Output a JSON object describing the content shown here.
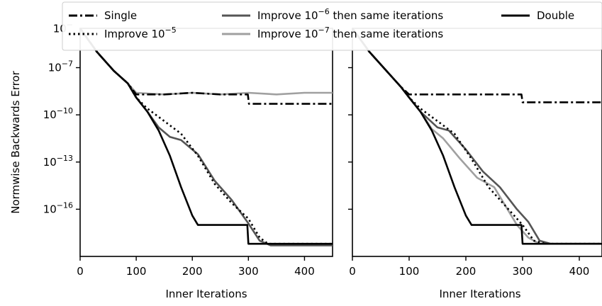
{
  "chart_data": [
    {
      "type": "line",
      "xlabel": "Inner Iterations",
      "ylabel": "Normwise Backwards Error",
      "xlim": [
        0,
        450
      ],
      "ylim_log10": [
        -19,
        -4.5
      ],
      "x_ticks": [
        0,
        100,
        200,
        300,
        400
      ],
      "y_ticks_log10": [
        -16,
        -13,
        -10,
        -7,
        -4
      ],
      "series": [
        {
          "name": "Single",
          "style": "dash-dot",
          "color": "#000000",
          "points": [
            [
              0,
              -4.2
            ],
            [
              30,
              -6.0
            ],
            [
              60,
              -7.2
            ],
            [
              85,
              -8.0
            ],
            [
              100,
              -8.7
            ],
            [
              150,
              -8.7
            ],
            [
              200,
              -8.6
            ],
            [
              250,
              -8.7
            ],
            [
              299,
              -8.7
            ],
            [
              301,
              -9.3
            ],
            [
              450,
              -9.3
            ]
          ]
        },
        {
          "name": "Improve 10^-5",
          "style": "dotted",
          "color": "#000000",
          "points": [
            [
              0,
              -4.2
            ],
            [
              30,
              -6.0
            ],
            [
              60,
              -7.2
            ],
            [
              85,
              -8.0
            ],
            [
              100,
              -8.9
            ],
            [
              120,
              -9.6
            ],
            [
              150,
              -10.4
            ],
            [
              180,
              -11.2
            ],
            [
              210,
              -12.6
            ],
            [
              240,
              -14.4
            ],
            [
              270,
              -15.6
            ],
            [
              300,
              -16.6
            ],
            [
              320,
              -17.8
            ],
            [
              335,
              -18.2
            ],
            [
              450,
              -18.2
            ]
          ]
        },
        {
          "name": "Improve 10^-6 then same iterations",
          "style": "solid",
          "color": "#555555",
          "points": [
            [
              0,
              -4.2
            ],
            [
              30,
              -6.0
            ],
            [
              60,
              -7.2
            ],
            [
              85,
              -8.0
            ],
            [
              100,
              -8.9
            ],
            [
              120,
              -9.8
            ],
            [
              140,
              -10.8
            ],
            [
              160,
              -11.4
            ],
            [
              180,
              -11.6
            ],
            [
              210,
              -12.5
            ],
            [
              240,
              -14.2
            ],
            [
              270,
              -15.4
            ],
            [
              300,
              -16.9
            ],
            [
              320,
              -18.0
            ],
            [
              340,
              -18.3
            ],
            [
              450,
              -18.3
            ]
          ]
        },
        {
          "name": "Improve 10^-7 then same iterations",
          "style": "solid",
          "color": "#a0a0a0",
          "points": [
            [
              0,
              -4.2
            ],
            [
              30,
              -6.0
            ],
            [
              60,
              -7.2
            ],
            [
              85,
              -8.0
            ],
            [
              100,
              -8.6
            ],
            [
              150,
              -8.7
            ],
            [
              200,
              -8.6
            ],
            [
              250,
              -8.7
            ],
            [
              300,
              -8.6
            ],
            [
              350,
              -8.7
            ],
            [
              400,
              -8.6
            ],
            [
              450,
              -8.6
            ]
          ]
        },
        {
          "name": "Double",
          "style": "solid",
          "color": "#000000",
          "points": [
            [
              0,
              -4.2
            ],
            [
              30,
              -6.0
            ],
            [
              60,
              -7.2
            ],
            [
              85,
              -8.0
            ],
            [
              100,
              -8.9
            ],
            [
              120,
              -9.8
            ],
            [
              140,
              -11.0
            ],
            [
              160,
              -12.6
            ],
            [
              180,
              -14.6
            ],
            [
              200,
              -16.4
            ],
            [
              210,
              -17.0
            ],
            [
              230,
              -17.0
            ],
            [
              298,
              -17.0
            ],
            [
              300,
              -18.2
            ],
            [
              450,
              -18.2
            ]
          ]
        }
      ]
    },
    {
      "type": "line",
      "xlabel": "Inner Iterations",
      "ylabel": "",
      "xlim": [
        0,
        440
      ],
      "ylim_log10": [
        -19,
        -4.5
      ],
      "x_ticks": [
        0,
        100,
        200,
        300,
        400
      ],
      "y_ticks_log10": [
        -16,
        -13,
        -10,
        -7,
        -4
      ],
      "series": [
        {
          "name": "Single",
          "style": "dash-dot",
          "color": "#000000",
          "points": [
            [
              0,
              -4.2
            ],
            [
              30,
              -6.0
            ],
            [
              60,
              -7.2
            ],
            [
              85,
              -8.2
            ],
            [
              100,
              -8.7
            ],
            [
              200,
              -8.7
            ],
            [
              298,
              -8.7
            ],
            [
              300,
              -9.2
            ],
            [
              440,
              -9.2
            ]
          ]
        },
        {
          "name": "Improve 10^-5",
          "style": "dotted",
          "color": "#000000",
          "points": [
            [
              0,
              -4.2
            ],
            [
              30,
              -6.0
            ],
            [
              60,
              -7.2
            ],
            [
              85,
              -8.2
            ],
            [
              100,
              -8.9
            ],
            [
              120,
              -9.6
            ],
            [
              150,
              -10.4
            ],
            [
              180,
              -11.2
            ],
            [
              210,
              -12.8
            ],
            [
              240,
              -14.6
            ],
            [
              270,
              -15.8
            ],
            [
              300,
              -17.0
            ],
            [
              320,
              -18.0
            ],
            [
              340,
              -18.2
            ],
            [
              440,
              -18.2
            ]
          ]
        },
        {
          "name": "Improve 10^-6 then same iterations",
          "style": "solid",
          "color": "#555555",
          "points": [
            [
              0,
              -4.2
            ],
            [
              30,
              -6.0
            ],
            [
              60,
              -7.2
            ],
            [
              85,
              -8.2
            ],
            [
              100,
              -8.9
            ],
            [
              120,
              -9.8
            ],
            [
              150,
              -10.8
            ],
            [
              170,
              -11.0
            ],
            [
              200,
              -12.2
            ],
            [
              230,
              -13.6
            ],
            [
              260,
              -14.6
            ],
            [
              290,
              -16.0
            ],
            [
              310,
              -16.8
            ],
            [
              330,
              -18.0
            ],
            [
              350,
              -18.2
            ],
            [
              440,
              -18.2
            ]
          ]
        },
        {
          "name": "Improve 10^-7 then same iterations",
          "style": "solid",
          "color": "#a0a0a0",
          "points": [
            [
              0,
              -4.2
            ],
            [
              30,
              -6.0
            ],
            [
              60,
              -7.2
            ],
            [
              85,
              -8.2
            ],
            [
              100,
              -8.9
            ],
            [
              120,
              -9.8
            ],
            [
              140,
              -10.9
            ],
            [
              160,
              -11.5
            ],
            [
              190,
              -12.8
            ],
            [
              220,
              -14.0
            ],
            [
              250,
              -14.6
            ],
            [
              270,
              -15.8
            ],
            [
              290,
              -17.0
            ],
            [
              310,
              -17.8
            ],
            [
              330,
              -18.2
            ],
            [
              440,
              -18.2
            ]
          ]
        },
        {
          "name": "Double",
          "style": "solid",
          "color": "#000000",
          "points": [
            [
              0,
              -4.2
            ],
            [
              30,
              -6.0
            ],
            [
              60,
              -7.2
            ],
            [
              85,
              -8.2
            ],
            [
              100,
              -8.9
            ],
            [
              120,
              -9.8
            ],
            [
              140,
              -11.0
            ],
            [
              160,
              -12.6
            ],
            [
              180,
              -14.6
            ],
            [
              200,
              -16.4
            ],
            [
              210,
              -17.0
            ],
            [
              230,
              -17.0
            ],
            [
              298,
              -17.0
            ],
            [
              300,
              -18.2
            ],
            [
              440,
              -18.2
            ]
          ]
        }
      ]
    }
  ],
  "legend": {
    "placement": "top",
    "entries": [
      {
        "label": "Single",
        "style": "dash-dot",
        "color": "#000000"
      },
      {
        "label_prefix": "Improve 10",
        "sup": "−5",
        "label_suffix": "",
        "style": "dotted",
        "color": "#000000"
      },
      {
        "label_prefix": "Improve 10",
        "sup": "−6",
        "label_suffix": " then same iterations",
        "style": "solid",
        "color": "#555555"
      },
      {
        "label_prefix": "Improve 10",
        "sup": "−7",
        "label_suffix": " then same iterations",
        "style": "solid",
        "color": "#a0a0a0"
      },
      {
        "label": "Double",
        "style": "solid",
        "color": "#000000"
      }
    ]
  },
  "y_tick_labels": [
    "10",
    "10",
    "10",
    "10",
    "10"
  ],
  "y_tick_sups": [
    "−16",
    "−13",
    "−10",
    "−7",
    "−4"
  ],
  "y_tick_label_visible_top": "10",
  "y_tick_sup_visible_top": "−"
}
